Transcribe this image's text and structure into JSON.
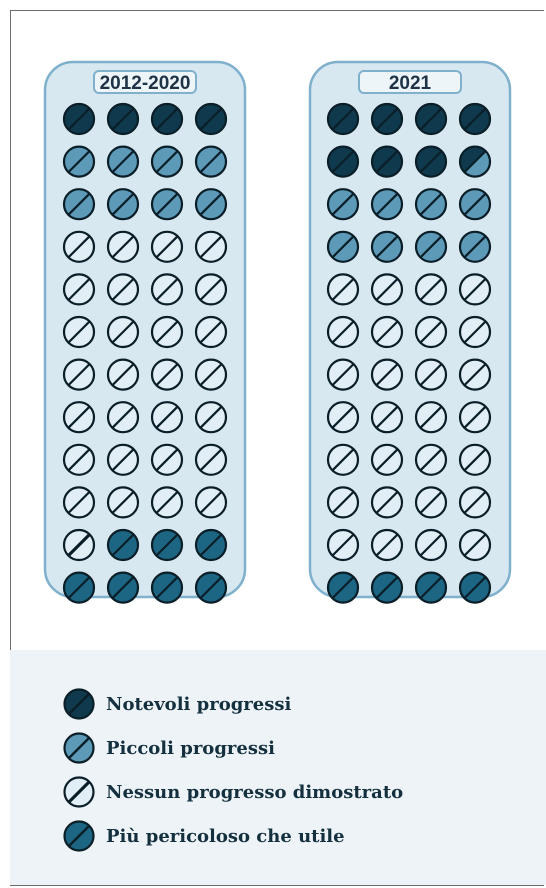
{
  "colors": {
    "notevoli": "#0f3a4d",
    "piccoli": "#5d9ab8",
    "nessuno": "#e1eef5",
    "pericoloso": "#1d6683",
    "panel_fill": "#d8e8f1",
    "panel_stroke": "#7fb0cc"
  },
  "chart_data": {
    "type": "pictogram",
    "categories": [
      "Notevoli progressi",
      "Piccoli progressi",
      "Nessun progresso dimostrato",
      "Più pericoloso che utile"
    ],
    "panels": [
      {
        "title": "2012-2020",
        "counts": [
          4,
          8,
          29,
          7
        ]
      },
      {
        "title": "2021",
        "counts": [
          7.5,
          8.5,
          28,
          4
        ]
      }
    ]
  },
  "legend": [
    {
      "key": "notevoli",
      "label": "Notevoli progressi"
    },
    {
      "key": "piccoli",
      "label": "Piccoli progressi"
    },
    {
      "key": "nessuno",
      "label": "Nessun progresso dimostrato"
    },
    {
      "key": "pericoloso",
      "label": "Più pericoloso che utile"
    }
  ]
}
